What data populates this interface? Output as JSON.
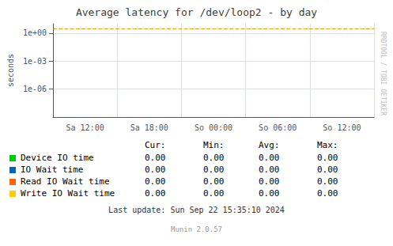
{
  "chart_data": {
    "type": "line",
    "title": "Average latency for /dev/loop2 - by day",
    "ylabel": "seconds",
    "categories": [
      "Sa 12:00",
      "Sa 18:00",
      "So 00:00",
      "So 06:00",
      "So 12:00"
    ],
    "series": [
      {
        "name": "Device IO time",
        "color": "#00cc00",
        "values": [
          null,
          null,
          null,
          null,
          null
        ],
        "stats": [
          {
            "value": 0,
            "label": "0.00"
          },
          {
            "value": 0,
            "label": "0.00"
          },
          {
            "value": 0,
            "label": "0.00"
          },
          {
            "value": 0,
            "label": "0.00"
          }
        ]
      },
      {
        "name": "IO Wait time",
        "color": "#0066bb",
        "values": [
          null,
          null,
          null,
          null,
          null
        ],
        "stats": [
          {
            "value": 0,
            "label": "0.00"
          },
          {
            "value": 0,
            "label": "0.00"
          },
          {
            "value": 0,
            "label": "0.00"
          },
          {
            "value": 0,
            "label": "0.00"
          }
        ]
      },
      {
        "name": "Read IO Wait time",
        "color": "#ff6600",
        "values": [
          null,
          null,
          null,
          null,
          null
        ],
        "stats": [
          {
            "value": 0,
            "label": "0.00"
          },
          {
            "value": 0,
            "label": "0.00"
          },
          {
            "value": 0,
            "label": "0.00"
          },
          {
            "value": 0,
            "label": "0.00"
          }
        ]
      },
      {
        "name": "Write IO Wait time",
        "color": "#ffcc00",
        "values": [
          null,
          null,
          null,
          null,
          null
        ],
        "stats": [
          {
            "value": 0,
            "label": "0.00"
          },
          {
            "value": 0,
            "label": "0.00"
          },
          {
            "value": 0,
            "label": "0.00"
          },
          {
            "value": 0,
            "label": "0.00"
          }
        ]
      }
    ],
    "stats_headers": [
      "Cur:",
      "Min:",
      "Avg:",
      "Max:"
    ],
    "log": "y",
    "ylim": [
      1e-09,
      10
    ],
    "yticks": [
      {
        "value": 1e-06,
        "label": "1e-06"
      },
      {
        "value": 0.001,
        "label": "1e-03"
      },
      {
        "value": 1,
        "label": "1e+00"
      }
    ],
    "grid": true,
    "reference_lines": [
      {
        "y": 3,
        "color": "#ff9900",
        "line_style": "dashed"
      }
    ],
    "footer": "Last update: Sun Sep 22 15:35:10 2024",
    "watermark": "Munin 2.0.57",
    "watermark_right": "RRDTOOL / TOBI OETIKER"
  }
}
